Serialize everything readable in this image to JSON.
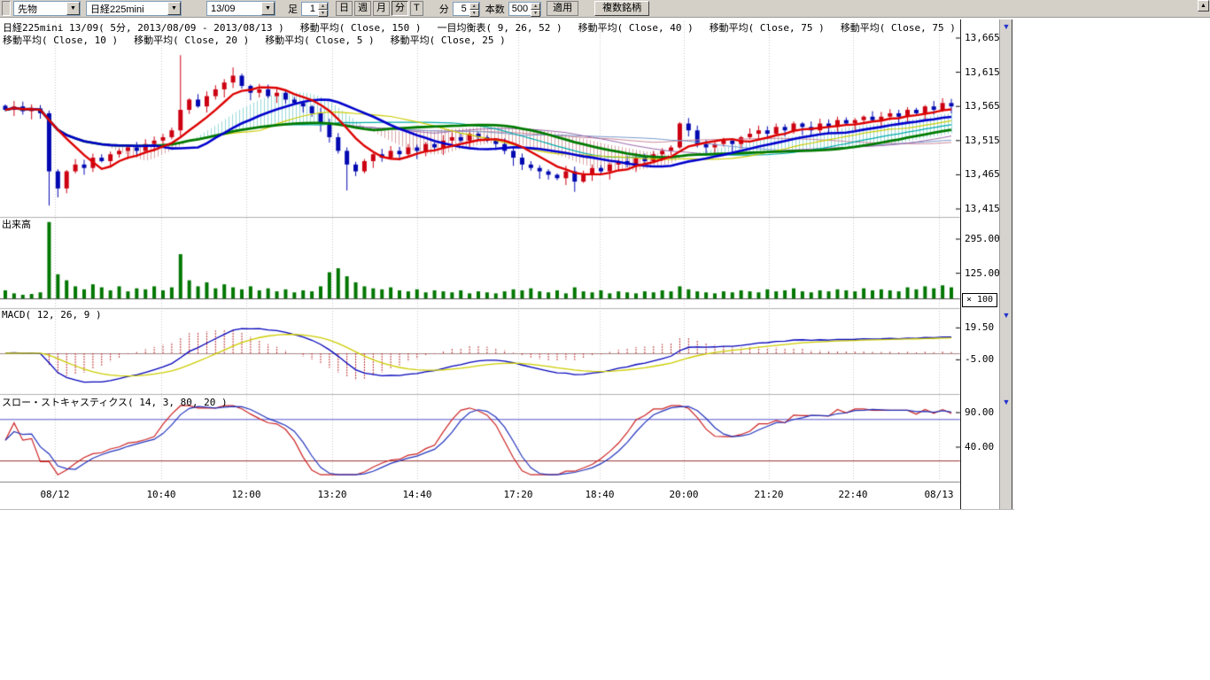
{
  "icons": {
    "down_arrow": "▼",
    "up_arrow": "▲"
  },
  "toolbar": {
    "instrument_dropdown": "先物",
    "symbol_dropdown": "日経225mini",
    "contract_dropdown": "13/09",
    "bar_label": "足",
    "bar_interval_value": "1",
    "period_buttons": [
      "日",
      "週",
      "月",
      "分",
      "T"
    ],
    "selected_period": "分",
    "minute_label": "分",
    "minute_value": "5",
    "count_label": "本数",
    "count_value": "500",
    "apply_button": "適用",
    "multi_symbol_button": "複数銘柄"
  },
  "legend": {
    "line1": [
      "日経225mini 13/09( 5分, 2013/08/09 - 2013/08/13 )",
      "移動平均( Close, 150 )",
      "一目均衡表( 9, 26, 52 )",
      "移動平均( Close, 40 )",
      "移動平均( Close, 75 )",
      "移動平均( Close, 75 )"
    ],
    "line2": [
      "移動平均( Close, 10 )",
      "移動平均( Close, 20 )",
      "移動平均( Close, 5 )",
      "移動平均( Close, 25 )"
    ]
  },
  "panels": {
    "volume_title": "出来高",
    "volume_multiplier": "× 100",
    "macd_title": "MACD( 12, 26, 9 )",
    "stoch_title": "スロー・ストキャスティクス( 14, 3, 80, 20 )"
  },
  "axes": {
    "price_labels": [
      "13,665",
      "13,615",
      "13,565",
      "13,515",
      "13,465",
      "13,415"
    ],
    "volume_labels": [
      "295.00",
      "125.00"
    ],
    "macd_labels": [
      "19.50",
      "-5.00"
    ],
    "stoch_labels": [
      "90.00",
      "40.00"
    ]
  },
  "chart_data": {
    "type": "candlestick",
    "title": "日経225mini 13/09( 5分, 2013/08/09 - 2013/08/13 )",
    "price_axis": {
      "min": 13400,
      "max": 13690,
      "ticks": [
        13665,
        13615,
        13565,
        13515,
        13465,
        13415
      ]
    },
    "time_labels": [
      "08/12",
      "10:40",
      "12:00",
      "13:20",
      "14:40",
      "17:20",
      "18:40",
      "20:00",
      "21:20",
      "22:40",
      "08/13"
    ],
    "time_tick_x": [
      62,
      182,
      278,
      375,
      471,
      585,
      677,
      772,
      868,
      963,
      1060
    ],
    "close": [
      13560,
      13565,
      13558,
      13562,
      13555,
      13470,
      13445,
      13470,
      13480,
      13475,
      13490,
      13485,
      13495,
      13500,
      13505,
      13500,
      13510,
      13515,
      13520,
      13530,
      13560,
      13575,
      13565,
      13580,
      13590,
      13600,
      13610,
      13595,
      13585,
      13590,
      13580,
      13585,
      13575,
      13570,
      13565,
      13555,
      13540,
      13520,
      13500,
      13480,
      13470,
      13485,
      13495,
      13490,
      13500,
      13495,
      13505,
      13500,
      13510,
      13505,
      13515,
      13520,
      13515,
      13525,
      13520,
      13515,
      13510,
      13500,
      13490,
      13480,
      13475,
      13470,
      13465,
      13460,
      13470,
      13455,
      13465,
      13475,
      13470,
      13480,
      13485,
      13480,
      13490,
      13485,
      13495,
      13500,
      13505,
      13540,
      13530,
      13510,
      13505,
      13510,
      13515,
      13510,
      13520,
      13525,
      13530,
      13525,
      13535,
      13530,
      13540,
      13535,
      13530,
      13540,
      13535,
      13545,
      13540,
      13545,
      13550,
      13545,
      13550,
      13555,
      13550,
      13560,
      13555,
      13565,
      13560,
      13570,
      13565
    ],
    "wick_high_overrides": {
      "20": 13640,
      "26": 13622
    },
    "wick_low_overrides": {
      "5": 13420,
      "6": 13432,
      "39": 13442,
      "65": 13440
    },
    "volume_x100": [
      40,
      25,
      18,
      22,
      30,
      380,
      120,
      90,
      60,
      45,
      70,
      55,
      40,
      60,
      35,
      50,
      45,
      60,
      40,
      55,
      220,
      90,
      60,
      80,
      50,
      70,
      55,
      45,
      60,
      40,
      50,
      35,
      45,
      30,
      40,
      35,
      60,
      130,
      150,
      110,
      80,
      60,
      50,
      45,
      55,
      40,
      35,
      45,
      30,
      40,
      35,
      30,
      40,
      25,
      35,
      30,
      25,
      35,
      45,
      40,
      50,
      35,
      30,
      40,
      25,
      55,
      35,
      30,
      40,
      25,
      35,
      30,
      25,
      35,
      30,
      40,
      35,
      60,
      45,
      35,
      30,
      25,
      35,
      30,
      40,
      35,
      30,
      45,
      35,
      40,
      50,
      35,
      30,
      40,
      35,
      45,
      40,
      35,
      50,
      40,
      45,
      40,
      35,
      55,
      45,
      60,
      50,
      65,
      55
    ],
    "volume_axis": {
      "ticks": [
        295,
        125
      ],
      "multiplier": 100
    },
    "overlays": [
      "MA(Close,150)",
      "Ichimoku(9,26,52)",
      "MA(Close,40)",
      "MA(Close,75)",
      "MA(Close,75)",
      "MA(Close,10)",
      "MA(Close,20)",
      "MA(Close,5)",
      "MA(Close,25)"
    ],
    "macd_params": [
      12,
      26,
      9
    ],
    "macd_axis": {
      "ticks": [
        19.5,
        -5
      ]
    },
    "stoch_params": [
      14,
      3,
      80,
      20
    ],
    "stoch_axis": {
      "ticks": [
        90,
        40
      ]
    },
    "colors": {
      "candle_up": "#cc0011",
      "candle_down": "#0008b0",
      "ma_fast": "#dd0000",
      "ma_mid": "#0000cc",
      "ma_slow": "#007a00",
      "ma_yellow": "#cccc00",
      "ma_cyan": "#00aaaa",
      "ma_purple": "#9966aa",
      "ma_pink": "#cc8899",
      "ma_lightblue": "#7799cc",
      "volume": "#007700",
      "macd_line": "#0000bb",
      "macd_signal": "#cccc00",
      "macd_hist": "#bb3333",
      "stoch_k": "#cc2222",
      "stoch_d": "#2233bb",
      "stoch_upper_line": "#5555cc",
      "stoch_lower_line": "#993333",
      "cloud_bear": "#c97f7f",
      "cloud_bull": "#6fc9c9"
    }
  }
}
